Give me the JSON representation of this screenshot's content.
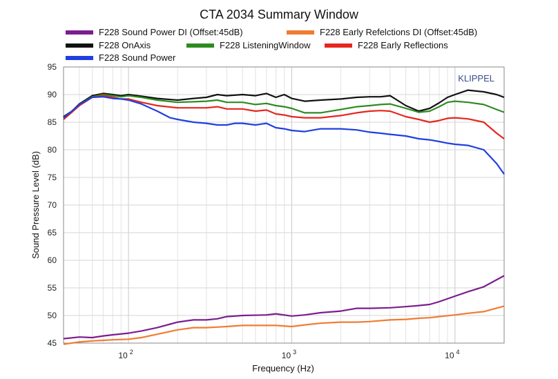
{
  "chart_data": {
    "type": "line",
    "title": "CTA 2034 Summary Window",
    "xlabel": "Frequency (Hz)",
    "ylabel": "Sound Pressure Level (dB)",
    "watermark_text": "KLIPPEL",
    "x_scale": "log",
    "xlim": [
      40,
      20000
    ],
    "ylim": [
      45,
      95
    ],
    "y_ticks": [
      45,
      50,
      55,
      60,
      65,
      70,
      75,
      80,
      85,
      90,
      95
    ],
    "x_major_ticks": [
      {
        "value": 100,
        "base": "10",
        "exp": "2"
      },
      {
        "value": 1000,
        "base": "10",
        "exp": "3"
      },
      {
        "value": 10000,
        "base": "10",
        "exp": "4"
      }
    ],
    "grid": true,
    "legend_position": "top",
    "series": [
      {
        "name": "F228 Sound Power DI (Offset:45dB)",
        "color": "#7b1d8f",
        "x": [
          40,
          50,
          60,
          70,
          80,
          100,
          120,
          150,
          200,
          250,
          300,
          350,
          400,
          500,
          700,
          800,
          1000,
          1200,
          1500,
          2000,
          2500,
          3000,
          4000,
          5000,
          6000,
          7000,
          8000,
          10000,
          12000,
          15000,
          20000
        ],
        "y": [
          45.8,
          46.1,
          46.0,
          46.3,
          46.5,
          46.8,
          47.2,
          47.8,
          48.8,
          49.2,
          49.2,
          49.4,
          49.8,
          50.0,
          50.1,
          50.3,
          49.9,
          50.1,
          50.5,
          50.8,
          51.3,
          51.3,
          51.4,
          51.6,
          51.8,
          52.0,
          52.5,
          53.5,
          54.3,
          55.2,
          57.2
        ]
      },
      {
        "name": "F228 Early Refelctions DI (Offset:45dB)",
        "color": "#f07c32",
        "x": [
          40,
          50,
          60,
          70,
          80,
          100,
          120,
          150,
          200,
          250,
          300,
          350,
          400,
          500,
          700,
          800,
          1000,
          1200,
          1500,
          2000,
          2500,
          3000,
          4000,
          5000,
          6000,
          7000,
          8000,
          10000,
          12000,
          15000,
          20000
        ],
        "y": [
          44.8,
          45.2,
          45.4,
          45.5,
          45.6,
          45.7,
          46.0,
          46.6,
          47.4,
          47.8,
          47.8,
          47.9,
          48.0,
          48.2,
          48.2,
          48.2,
          48.0,
          48.3,
          48.6,
          48.8,
          48.8,
          48.9,
          49.2,
          49.3,
          49.5,
          49.6,
          49.8,
          50.1,
          50.4,
          50.7,
          51.7
        ]
      },
      {
        "name": "F228 OnAxis",
        "color": "#111111",
        "x": [
          40,
          45,
          50,
          60,
          70,
          80,
          90,
          100,
          120,
          150,
          200,
          250,
          300,
          350,
          400,
          500,
          600,
          700,
          800,
          900,
          1000,
          1200,
          1500,
          2000,
          2500,
          3000,
          3500,
          4000,
          5000,
          6000,
          7000,
          8000,
          9000,
          10000,
          12000,
          15000,
          18000,
          20000
        ],
        "y": [
          86.0,
          87.0,
          88.3,
          89.8,
          90.2,
          90.0,
          89.8,
          90.0,
          89.7,
          89.3,
          89.0,
          89.3,
          89.5,
          90.0,
          89.8,
          90.0,
          89.8,
          90.2,
          89.5,
          90.0,
          89.3,
          88.8,
          89.0,
          89.2,
          89.5,
          89.6,
          89.6,
          89.8,
          88.0,
          87.0,
          87.5,
          88.5,
          89.5,
          90.0,
          90.8,
          90.5,
          90.0,
          89.5
        ]
      },
      {
        "name": "F228 ListeningWindow",
        "color": "#2e8b20",
        "x": [
          40,
          45,
          50,
          60,
          70,
          80,
          90,
          100,
          120,
          150,
          200,
          250,
          300,
          350,
          400,
          500,
          600,
          700,
          800,
          900,
          1000,
          1200,
          1500,
          2000,
          2500,
          3000,
          3500,
          4000,
          5000,
          6000,
          7000,
          8000,
          9000,
          10000,
          12000,
          15000,
          18000,
          20000
        ],
        "y": [
          85.8,
          87.0,
          88.2,
          89.6,
          90.0,
          89.8,
          89.6,
          89.8,
          89.5,
          89.0,
          88.6,
          88.7,
          88.8,
          89.0,
          88.6,
          88.6,
          88.2,
          88.4,
          88.0,
          87.8,
          87.5,
          86.7,
          86.7,
          87.3,
          87.8,
          88.0,
          88.2,
          88.3,
          87.5,
          86.8,
          87.0,
          87.8,
          88.6,
          88.8,
          88.6,
          88.2,
          87.3,
          86.8
        ]
      },
      {
        "name": "F228 Early Reflections",
        "color": "#e6261f",
        "x": [
          40,
          45,
          50,
          60,
          70,
          80,
          90,
          100,
          120,
          150,
          200,
          250,
          300,
          350,
          400,
          500,
          600,
          700,
          800,
          900,
          1000,
          1200,
          1500,
          2000,
          2500,
          3000,
          3500,
          4000,
          5000,
          6000,
          7000,
          8000,
          9000,
          10000,
          12000,
          15000,
          18000,
          20000
        ],
        "y": [
          85.5,
          86.8,
          88.0,
          89.5,
          89.8,
          89.5,
          89.2,
          89.2,
          88.6,
          88.0,
          87.6,
          87.6,
          87.6,
          87.8,
          87.4,
          87.4,
          87.0,
          87.2,
          86.5,
          86.3,
          86.0,
          85.8,
          85.8,
          86.2,
          86.7,
          87.0,
          87.1,
          87.0,
          86.0,
          85.5,
          85.0,
          85.3,
          85.7,
          85.8,
          85.6,
          85.0,
          83.0,
          82.0
        ]
      },
      {
        "name": "F228 Sound Power",
        "color": "#1f3fe0",
        "x": [
          40,
          45,
          50,
          60,
          70,
          80,
          90,
          100,
          120,
          150,
          180,
          200,
          250,
          300,
          350,
          400,
          450,
          500,
          600,
          700,
          800,
          900,
          1000,
          1200,
          1500,
          2000,
          2500,
          3000,
          3500,
          4000,
          5000,
          6000,
          7000,
          8000,
          9000,
          10000,
          12000,
          15000,
          18000,
          20000
        ],
        "y": [
          85.8,
          87.0,
          88.2,
          89.5,
          89.6,
          89.3,
          89.2,
          89.0,
          88.3,
          87.0,
          85.8,
          85.5,
          85.0,
          84.8,
          84.5,
          84.5,
          84.8,
          84.8,
          84.5,
          84.8,
          84.0,
          83.8,
          83.5,
          83.3,
          83.8,
          83.8,
          83.6,
          83.2,
          83.0,
          82.8,
          82.5,
          82.0,
          81.8,
          81.5,
          81.2,
          81.0,
          80.8,
          80.0,
          77.5,
          75.6
        ]
      }
    ]
  }
}
